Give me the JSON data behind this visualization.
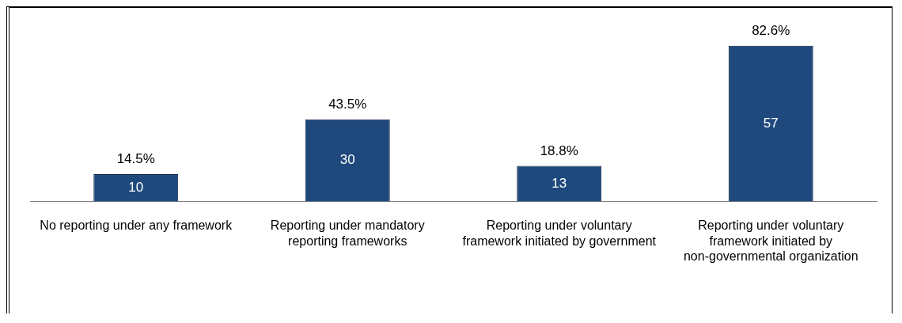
{
  "chart_data": {
    "type": "bar",
    "categories": [
      "No reporting under any framework",
      "Reporting under mandatory reporting frameworks",
      "Reporting under voluntary framework initiated by government",
      "Reporting under voluntary framework initiated by non-governmental organization"
    ],
    "values": [
      10,
      30,
      13,
      57
    ],
    "color": "#1f497d",
    "data_labels": true,
    "annotations": [
      {
        "text": "14.5%",
        "x": "No reporting under any framework",
        "y": 10
      },
      {
        "text": "43.5%",
        "x": "Reporting under mandatory reporting frameworks",
        "y": 30
      },
      {
        "text": "18.8%",
        "x": "Reporting under voluntary framework initiated by government",
        "y": 13
      },
      {
        "text": "82.6%",
        "x": "Reporting under voluntary framework initiated by non-governmental organization",
        "y": 57
      }
    ],
    "grid": false,
    "legend": false
  }
}
